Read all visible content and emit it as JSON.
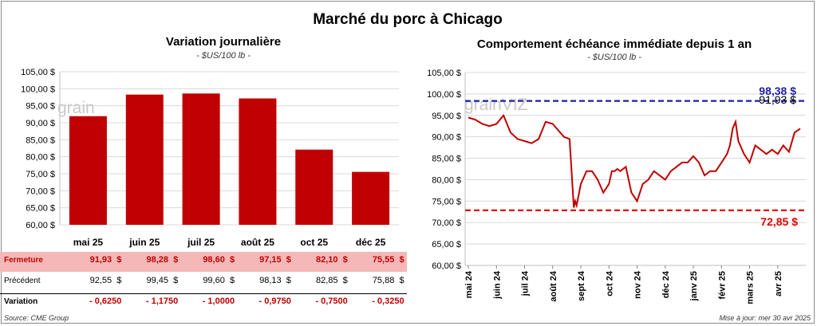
{
  "title": "Marché du porc à Chicago",
  "left_chart": {
    "title": "Variation journalière",
    "subtitle": "- $US/100 lb -",
    "watermark": "grain",
    "table": {
      "rows": [
        {
          "label": "Fermeture",
          "values": [
            "91,93  $",
            "98,28  $",
            "98,60  $",
            "97,15  $",
            "82,10  $",
            "75,55  $"
          ]
        },
        {
          "label": "Précédent",
          "values": [
            "92,55  $",
            "99,45  $",
            "99,60  $",
            "98,13  $",
            "82,85  $",
            "75,88  $"
          ]
        },
        {
          "label": "Variation",
          "values": [
            "- 0,6250",
            "- 1,1750",
            "- 1,0000",
            "- 0,9750",
            "- 0,7500",
            "- 0,3250"
          ]
        }
      ]
    }
  },
  "right_chart": {
    "title": "Comportement échéance immédiate depuis 1 an",
    "subtitle": "- $US/100 lb -",
    "watermark": "grainVIZ",
    "high_label": "98,38 $",
    "low_label": "72,85 $",
    "last_label": "91,93 $"
  },
  "footer": {
    "source": "Source: CME Group",
    "updated": "Mise à jour: mer 30 avr 2025"
  },
  "chart_data": [
    {
      "type": "bar",
      "categories": [
        "mai 25",
        "juin 25",
        "juil 25",
        "août 25",
        "oct 25",
        "déc 25"
      ],
      "values": [
        91.93,
        98.28,
        98.6,
        97.15,
        82.1,
        75.55
      ],
      "ylim": [
        60,
        105
      ],
      "yticks": [
        "60,00 $",
        "65,00 $",
        "70,00 $",
        "75,00 $",
        "80,00 $",
        "85,00 $",
        "90,00 $",
        "95,00 $",
        "100,00 $",
        "105,00 $"
      ],
      "color": "#c00000"
    },
    {
      "type": "line",
      "ylim": [
        60,
        105
      ],
      "yticks": [
        "60,00 $",
        "65,00 $",
        "70,00 $",
        "75,00 $",
        "80,00 $",
        "85,00 $",
        "90,00 $",
        "95,00 $",
        "100,00 $",
        "105,00 $"
      ],
      "xticks": [
        "mai 24",
        "juin 24",
        "juil 24",
        "août 24",
        "sept 24",
        "oct 24",
        "nov 24",
        "déc 24",
        "janv 25",
        "févr 25",
        "mars 25",
        "avr 25"
      ],
      "x_months": [
        0,
        0.25,
        0.5,
        0.75,
        1,
        1.25,
        1.5,
        1.75,
        2,
        2.25,
        2.5,
        2.75,
        3,
        3.2,
        3.4,
        3.6,
        3.75,
        3.8,
        3.85,
        4.0,
        4.2,
        4.4,
        4.6,
        4.8,
        5.0,
        5.1,
        5.2,
        5.3,
        5.4,
        5.6,
        5.8,
        6.0,
        6.2,
        6.4,
        6.6,
        6.8,
        7.0,
        7.2,
        7.4,
        7.6,
        7.8,
        8.0,
        8.2,
        8.4,
        8.6,
        8.8,
        9.0,
        9.1,
        9.2,
        9.3,
        9.4,
        9.5,
        9.6,
        9.8,
        10.0,
        10.2,
        10.4,
        10.6,
        10.8,
        11.0,
        11.2,
        11.4,
        11.6,
        11.8
      ],
      "values": [
        94.5,
        94,
        93,
        92.5,
        93,
        95,
        91,
        89.5,
        89,
        88.5,
        89.5,
        93.5,
        93,
        91.5,
        90,
        89.5,
        73.5,
        75,
        74,
        79,
        82,
        82,
        80,
        77,
        79,
        82,
        82,
        82.5,
        82,
        83,
        77,
        75,
        79,
        80,
        82,
        81,
        80,
        82,
        83,
        84,
        84,
        85.5,
        84,
        81,
        82,
        82,
        84,
        85,
        86,
        88,
        92,
        93.5,
        89,
        86,
        84,
        88,
        87,
        86,
        87,
        86,
        88,
        86.5,
        91,
        91.9
      ],
      "series": [
        {
          "name": "",
          "color": "#c00000"
        }
      ],
      "hlines": [
        {
          "value": 98.38,
          "color": "#1f1fa8"
        },
        {
          "value": 72.85,
          "color": "#e00000"
        }
      ]
    }
  ]
}
